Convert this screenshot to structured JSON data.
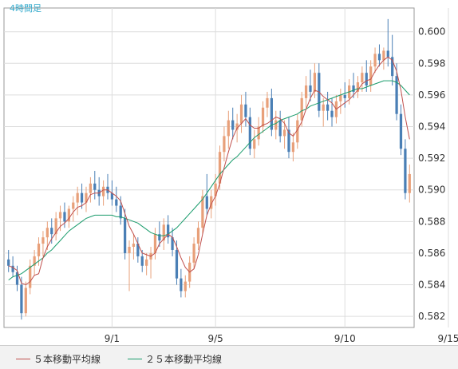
{
  "chart_data": {
    "type": "candlestick",
    "timeframe_label": "4時間足",
    "y_ticks": [
      "0.582",
      "0.584",
      "0.586",
      "0.588",
      "0.590",
      "0.592",
      "0.594",
      "0.596",
      "0.598",
      "0.600"
    ],
    "ylim": [
      0.5813,
      0.6015
    ],
    "x_ticks": [
      {
        "label": "9/1",
        "index": 24
      },
      {
        "label": "9/5",
        "index": 48
      },
      {
        "label": "9/10",
        "index": 78
      },
      {
        "label": "9/15",
        "index": 102
      }
    ],
    "colors": {
      "up": "#e8a07a",
      "down": "#4a7fb5",
      "ma5": "#c0504d",
      "ma25": "#1a9c6c",
      "grid": "#dddddd",
      "frame": "#999999"
    },
    "candles": [
      [
        0.5856,
        0.5862,
        0.5848,
        0.5852
      ],
      [
        0.5852,
        0.5858,
        0.5845,
        0.5848
      ],
      [
        0.5848,
        0.5852,
        0.5836,
        0.584
      ],
      [
        0.584,
        0.5845,
        0.5818,
        0.5822
      ],
      [
        0.5822,
        0.5842,
        0.582,
        0.5838
      ],
      [
        0.5838,
        0.5856,
        0.5834,
        0.5852
      ],
      [
        0.5852,
        0.5862,
        0.5846,
        0.5858
      ],
      [
        0.5858,
        0.587,
        0.5852,
        0.5866
      ],
      [
        0.5866,
        0.5874,
        0.5858,
        0.587
      ],
      [
        0.587,
        0.588,
        0.5862,
        0.5876
      ],
      [
        0.5876,
        0.5882,
        0.5866,
        0.5872
      ],
      [
        0.5872,
        0.5886,
        0.5868,
        0.5882
      ],
      [
        0.5882,
        0.589,
        0.5874,
        0.5886
      ],
      [
        0.5886,
        0.5892,
        0.5876,
        0.588
      ],
      [
        0.588,
        0.589,
        0.5876,
        0.5888
      ],
      [
        0.5888,
        0.5896,
        0.588,
        0.5892
      ],
      [
        0.5892,
        0.5902,
        0.5884,
        0.5898
      ],
      [
        0.5898,
        0.5904,
        0.5888,
        0.5892
      ],
      [
        0.5892,
        0.5902,
        0.5886,
        0.5898
      ],
      [
        0.5898,
        0.5908,
        0.5892,
        0.5904
      ],
      [
        0.5904,
        0.5912,
        0.5894,
        0.59
      ],
      [
        0.59,
        0.5908,
        0.589,
        0.5896
      ],
      [
        0.5896,
        0.5906,
        0.589,
        0.5902
      ],
      [
        0.5902,
        0.591,
        0.5894,
        0.5898
      ],
      [
        0.5898,
        0.5906,
        0.589,
        0.5894
      ],
      [
        0.5894,
        0.5902,
        0.5886,
        0.589
      ],
      [
        0.589,
        0.5896,
        0.5878,
        0.5882
      ],
      [
        0.5882,
        0.5888,
        0.5856,
        0.586
      ],
      [
        0.586,
        0.5868,
        0.5836,
        0.5864
      ],
      [
        0.5864,
        0.5872,
        0.5856,
        0.5866
      ],
      [
        0.5866,
        0.587,
        0.5854,
        0.5858
      ],
      [
        0.5858,
        0.5862,
        0.5848,
        0.5852
      ],
      [
        0.5852,
        0.586,
        0.5846,
        0.5856
      ],
      [
        0.5856,
        0.5864,
        0.5844,
        0.586
      ],
      [
        0.586,
        0.5876,
        0.5856,
        0.5872
      ],
      [
        0.5872,
        0.588,
        0.5864,
        0.5868
      ],
      [
        0.5868,
        0.5882,
        0.5862,
        0.5878
      ],
      [
        0.5878,
        0.5884,
        0.5866,
        0.587
      ],
      [
        0.587,
        0.5876,
        0.5858,
        0.5862
      ],
      [
        0.5862,
        0.5868,
        0.584,
        0.5844
      ],
      [
        0.5844,
        0.585,
        0.5832,
        0.5836
      ],
      [
        0.5836,
        0.5846,
        0.5832,
        0.5842
      ],
      [
        0.5842,
        0.5858,
        0.5838,
        0.5854
      ],
      [
        0.5854,
        0.587,
        0.585,
        0.5866
      ],
      [
        0.5866,
        0.588,
        0.5862,
        0.5876
      ],
      [
        0.5876,
        0.59,
        0.5872,
        0.5896
      ],
      [
        0.5896,
        0.591,
        0.5884,
        0.5888
      ],
      [
        0.5888,
        0.59,
        0.5882,
        0.5896
      ],
      [
        0.5896,
        0.591,
        0.589,
        0.5904
      ],
      [
        0.5904,
        0.5928,
        0.59,
        0.5924
      ],
      [
        0.5924,
        0.594,
        0.5918,
        0.5934
      ],
      [
        0.5934,
        0.595,
        0.5926,
        0.5944
      ],
      [
        0.5944,
        0.5952,
        0.5932,
        0.5938
      ],
      [
        0.5938,
        0.5948,
        0.593,
        0.5942
      ],
      [
        0.5942,
        0.596,
        0.5936,
        0.5954
      ],
      [
        0.5954,
        0.5962,
        0.594,
        0.5946
      ],
      [
        0.5946,
        0.5952,
        0.5922,
        0.5926
      ],
      [
        0.5926,
        0.5938,
        0.592,
        0.5932
      ],
      [
        0.5932,
        0.5946,
        0.5928,
        0.594
      ],
      [
        0.594,
        0.5956,
        0.5936,
        0.5952
      ],
      [
        0.5952,
        0.5962,
        0.5946,
        0.5958
      ],
      [
        0.5958,
        0.5964,
        0.5934,
        0.5938
      ],
      [
        0.5938,
        0.595,
        0.5932,
        0.5944
      ],
      [
        0.5944,
        0.595,
        0.593,
        0.5934
      ],
      [
        0.5934,
        0.5944,
        0.5926,
        0.5938
      ],
      [
        0.5938,
        0.5946,
        0.592,
        0.5924
      ],
      [
        0.5924,
        0.5936,
        0.5918,
        0.593
      ],
      [
        0.593,
        0.5948,
        0.5926,
        0.5944
      ],
      [
        0.5944,
        0.5962,
        0.594,
        0.5958
      ],
      [
        0.5958,
        0.5972,
        0.5952,
        0.5966
      ],
      [
        0.5966,
        0.5976,
        0.5956,
        0.5962
      ],
      [
        0.5962,
        0.598,
        0.5958,
        0.5974
      ],
      [
        0.5974,
        0.598,
        0.5946,
        0.595
      ],
      [
        0.595,
        0.5958,
        0.594,
        0.5954
      ],
      [
        0.5954,
        0.5962,
        0.5944,
        0.595
      ],
      [
        0.595,
        0.5958,
        0.594,
        0.5946
      ],
      [
        0.5946,
        0.596,
        0.5942,
        0.5956
      ],
      [
        0.5956,
        0.5964,
        0.5948,
        0.596
      ],
      [
        0.596,
        0.5968,
        0.5952,
        0.5958
      ],
      [
        0.5958,
        0.597,
        0.5954,
        0.5966
      ],
      [
        0.5966,
        0.5974,
        0.5958,
        0.5962
      ],
      [
        0.5962,
        0.5972,
        0.5958,
        0.5968
      ],
      [
        0.5968,
        0.5978,
        0.5962,
        0.5974
      ],
      [
        0.5974,
        0.5982,
        0.5962,
        0.5966
      ],
      [
        0.5966,
        0.5982,
        0.5962,
        0.5978
      ],
      [
        0.5978,
        0.599,
        0.5974,
        0.5986
      ],
      [
        0.5986,
        0.5992,
        0.5978,
        0.5982
      ],
      [
        0.5982,
        0.599,
        0.5976,
        0.5988
      ],
      [
        0.5988,
        0.6008,
        0.5978,
        0.5984
      ],
      [
        0.5984,
        0.5998,
        0.5966,
        0.5972
      ],
      [
        0.5972,
        0.598,
        0.5944,
        0.5948
      ],
      [
        0.5948,
        0.5954,
        0.5922,
        0.5926
      ],
      [
        0.5926,
        0.5932,
        0.5894,
        0.5898
      ],
      [
        0.5898,
        0.5916,
        0.5892,
        0.591
      ]
    ],
    "ma5": [
      0.5852,
      0.5851,
      0.5849,
      0.5841,
      0.584,
      0.5842,
      0.5846,
      0.5847,
      0.5857,
      0.5864,
      0.5869,
      0.5873,
      0.5877,
      0.5879,
      0.5882,
      0.5886,
      0.5889,
      0.589,
      0.5892,
      0.5897,
      0.5898,
      0.5898,
      0.59,
      0.59,
      0.5898,
      0.5896,
      0.5893,
      0.5885,
      0.5877,
      0.5872,
      0.5866,
      0.586,
      0.5859,
      0.5858,
      0.586,
      0.5866,
      0.5869,
      0.5872,
      0.587,
      0.5864,
      0.5857,
      0.5851,
      0.5848,
      0.585,
      0.5859,
      0.5872,
      0.5884,
      0.5891,
      0.5896,
      0.5904,
      0.5914,
      0.5924,
      0.5933,
      0.5939,
      0.5942,
      0.5945,
      0.5941,
      0.5939,
      0.5939,
      0.5941,
      0.5942,
      0.5944,
      0.5946,
      0.5945,
      0.5942,
      0.5936,
      0.5934,
      0.5938,
      0.5943,
      0.5951,
      0.5958,
      0.5963,
      0.5962,
      0.5959,
      0.5957,
      0.5955,
      0.5951,
      0.5953,
      0.5955,
      0.5957,
      0.596,
      0.5963,
      0.5967,
      0.5969,
      0.597,
      0.5975,
      0.5979,
      0.5982,
      0.5984,
      0.5982,
      0.5975,
      0.5963,
      0.5946,
      0.5932
    ],
    "ma25": [
      0.5843,
      0.5845,
      0.5846,
      0.5847,
      0.5849,
      0.5851,
      0.5853,
      0.5855,
      0.5857,
      0.586,
      0.5862,
      0.5865,
      0.5868,
      0.5871,
      0.5874,
      0.5876,
      0.5878,
      0.588,
      0.5882,
      0.5883,
      0.5884,
      0.5884,
      0.5884,
      0.5884,
      0.5884,
      0.5883,
      0.5883,
      0.5882,
      0.5881,
      0.588,
      0.5879,
      0.5877,
      0.5875,
      0.5873,
      0.5872,
      0.5871,
      0.5871,
      0.5872,
      0.5874,
      0.5876,
      0.5879,
      0.5882,
      0.5885,
      0.5888,
      0.5891,
      0.5894,
      0.5898,
      0.5902,
      0.5906,
      0.591,
      0.5913,
      0.5916,
      0.5919,
      0.5921,
      0.5924,
      0.5927,
      0.593,
      0.5933,
      0.5935,
      0.5937,
      0.5939,
      0.5941,
      0.5942,
      0.5944,
      0.5945,
      0.5946,
      0.5947,
      0.5948,
      0.595,
      0.5951,
      0.5953,
      0.5954,
      0.5955,
      0.5956,
      0.5957,
      0.5958,
      0.5959,
      0.596,
      0.5961,
      0.5962,
      0.5963,
      0.5964,
      0.5964,
      0.5965,
      0.5966,
      0.5967,
      0.5968,
      0.5969,
      0.5969,
      0.5969,
      0.5968,
      0.5966,
      0.5963,
      0.596
    ]
  },
  "legend": {
    "ma5_label": "５本移動平均線",
    "ma25_label": "２５本移動平均線"
  }
}
